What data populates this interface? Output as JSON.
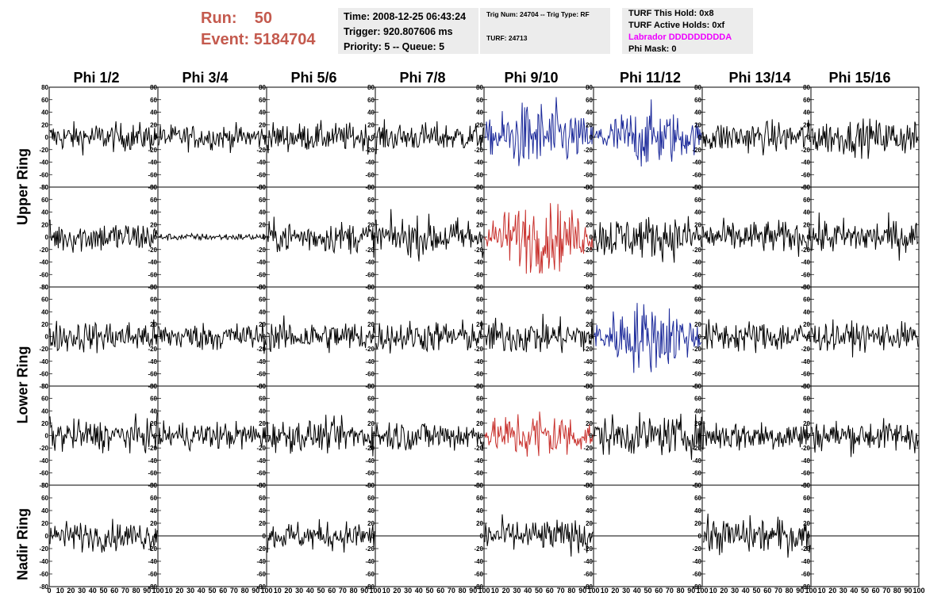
{
  "header": {
    "run_label": "Run:",
    "run_value": "50",
    "event_label": "Event:",
    "event_value": "5184704"
  },
  "timing_panel": {
    "time": "Time: 2008-12-25 06:43:24",
    "trigger": "Trigger: 920.807606 ms",
    "priority": "Priority: 5 -- Queue: 5"
  },
  "trig_panel": {
    "trig": "Trig Num: 24704 -- Trig Type: RF",
    "turf": "TURF: 24713"
  },
  "turf_panel": {
    "this_hold": "TURF This Hold: 0x8",
    "active_holds": "TURF Active Holds: 0xf",
    "labrador": "Labrador DDDDDDDDDA",
    "phi_mask": "Phi Mask: 0"
  },
  "phi_headers": [
    "Phi 1/2",
    "Phi 3/4",
    "Phi 5/6",
    "Phi 7/8",
    "Phi 9/10",
    "Phi 11/12",
    "Phi 13/14",
    "Phi 15/16"
  ],
  "ring_labels": [
    "Upper Ring",
    "Lower Ring",
    "Nadir Ring"
  ],
  "axis": {
    "y_ticks": [
      "80",
      "60",
      "40",
      "20",
      "0",
      "-20",
      "-40",
      "-60",
      "-80"
    ],
    "x_ticks": [
      "0",
      "10",
      "20",
      "30",
      "40",
      "50",
      "60",
      "70",
      "80",
      "90",
      "100"
    ],
    "y_range": [
      -80,
      80
    ],
    "x_range": [
      0,
      100
    ]
  },
  "colors": {
    "header_red": "#c45a4e",
    "trace_black": "#000000",
    "trace_blue": "#1c2a9a",
    "trace_red": "#c8302c",
    "labrador_magenta": "#ee00ff",
    "panel_bg": "#ececec"
  },
  "traces": {
    "rows": [
      [
        "black",
        "black",
        "black",
        "black",
        "blue",
        "blue",
        "black",
        "black"
      ],
      [
        "black",
        "black",
        "black",
        "black",
        "red",
        "black",
        "black",
        "black"
      ],
      [
        "black",
        "black",
        "black",
        "black",
        "black",
        "blue",
        "black",
        "black"
      ],
      [
        "black",
        "black",
        "black",
        "black",
        "red",
        "black",
        "black",
        "black"
      ],
      [
        "black",
        "flat",
        "black",
        "flat",
        "black",
        "flat",
        "black",
        "flat"
      ]
    ],
    "amplitude": [
      [
        16,
        14,
        16,
        16,
        28,
        24,
        18,
        20
      ],
      [
        18,
        4,
        18,
        22,
        28,
        24,
        18,
        20
      ],
      [
        18,
        16,
        18,
        18,
        20,
        28,
        18,
        16
      ],
      [
        18,
        16,
        18,
        18,
        22,
        22,
        18,
        18
      ],
      [
        16,
        0,
        16,
        0,
        18,
        0,
        20,
        0
      ]
    ]
  }
}
